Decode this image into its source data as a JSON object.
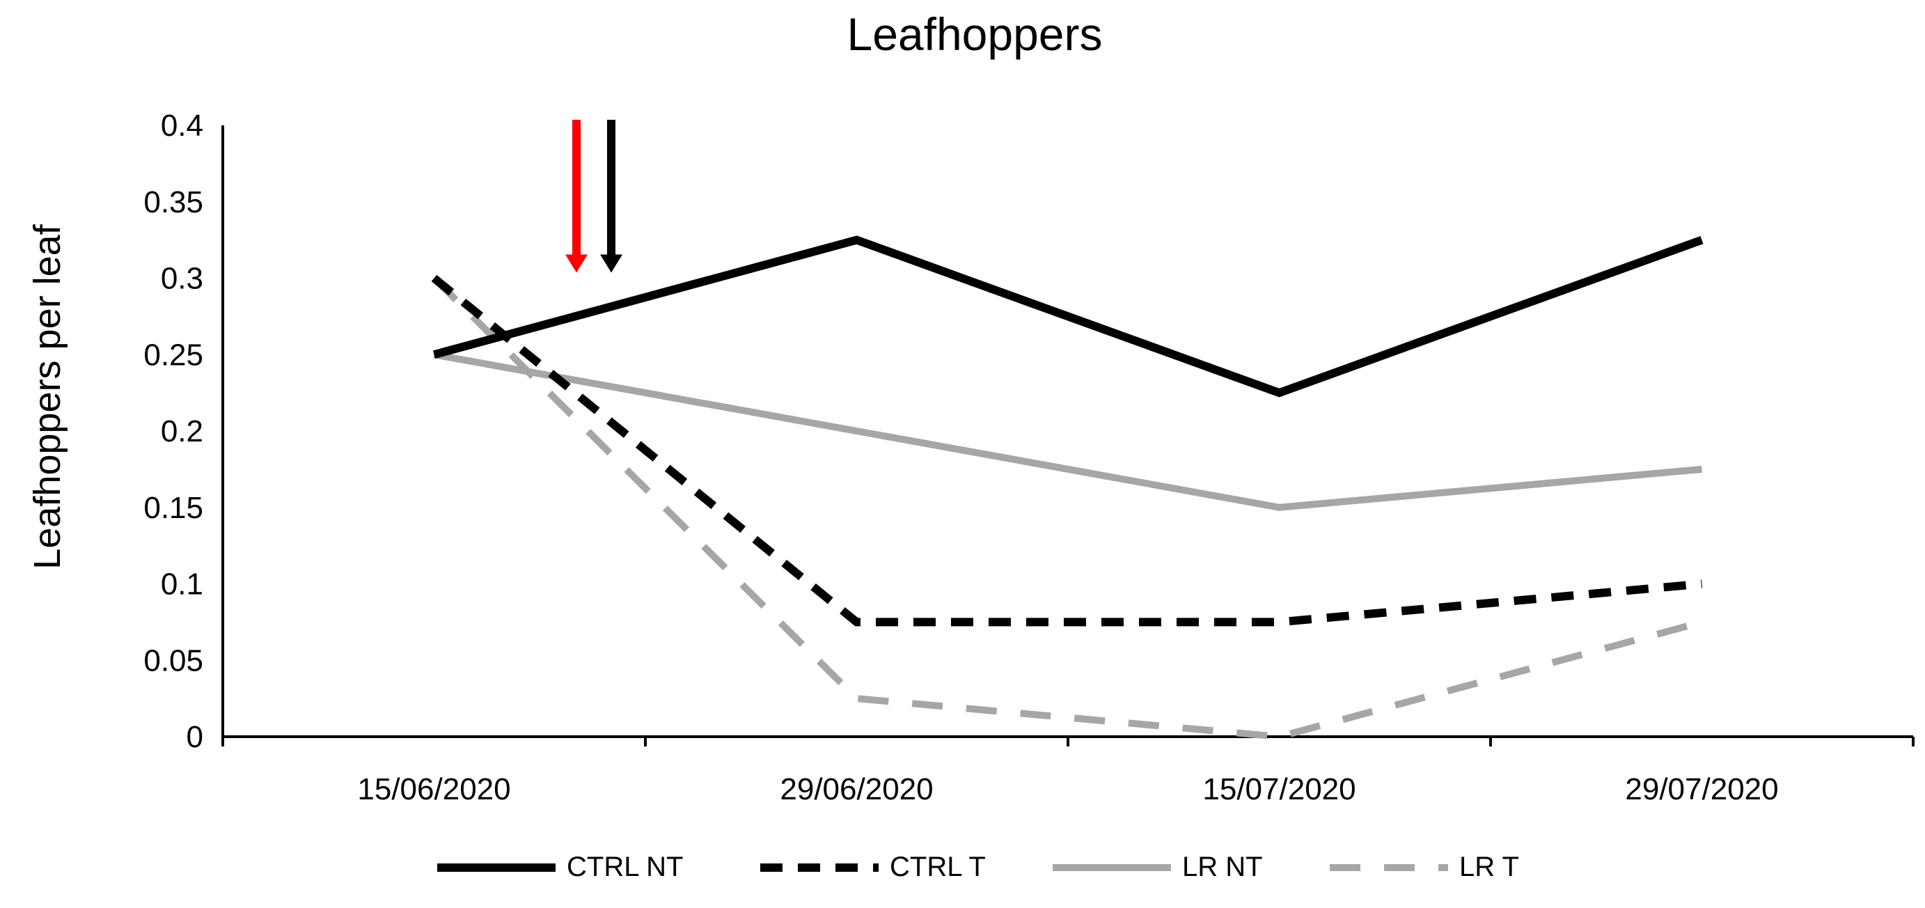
{
  "chart_data": {
    "type": "line",
    "title": "Leafhoppers",
    "xlabel": "",
    "ylabel": "Leafhoppers per leaf",
    "categories": [
      "15/06/2020",
      "29/06/2020",
      "15/07/2020",
      "29/07/2020"
    ],
    "ylim": [
      0,
      0.4
    ],
    "yticks": [
      "0",
      "0.05",
      "0.1",
      "0.15",
      "0.2",
      "0.25",
      "0.3",
      "0.35",
      "0.4"
    ],
    "grid": false,
    "legend_position": "bottom",
    "series": [
      {
        "name": "CTRL NT",
        "values": [
          0.25,
          0.325,
          0.225,
          0.325
        ],
        "color": "#000000",
        "dash": "solid"
      },
      {
        "name": "CTRL T",
        "values": [
          0.3,
          0.075,
          0.075,
          0.1
        ],
        "color": "#000000",
        "dash": "dashed"
      },
      {
        "name": "LR NT",
        "values": [
          0.25,
          0.2,
          0.15,
          0.175
        ],
        "color": "#a6a6a6",
        "dash": "solid"
      },
      {
        "name": "LR T",
        "values": [
          0.3,
          0.025,
          0.0,
          0.075
        ],
        "color": "#a6a6a6",
        "dash": "dashed"
      }
    ],
    "annotations": [
      {
        "type": "arrow",
        "color": "#ff0000",
        "x_between": [
          0,
          1
        ],
        "y_from": 0.4,
        "y_to": 0.3
      },
      {
        "type": "arrow",
        "color": "#000000",
        "x_between": [
          0,
          1
        ],
        "y_from": 0.4,
        "y_to": 0.3
      }
    ]
  }
}
